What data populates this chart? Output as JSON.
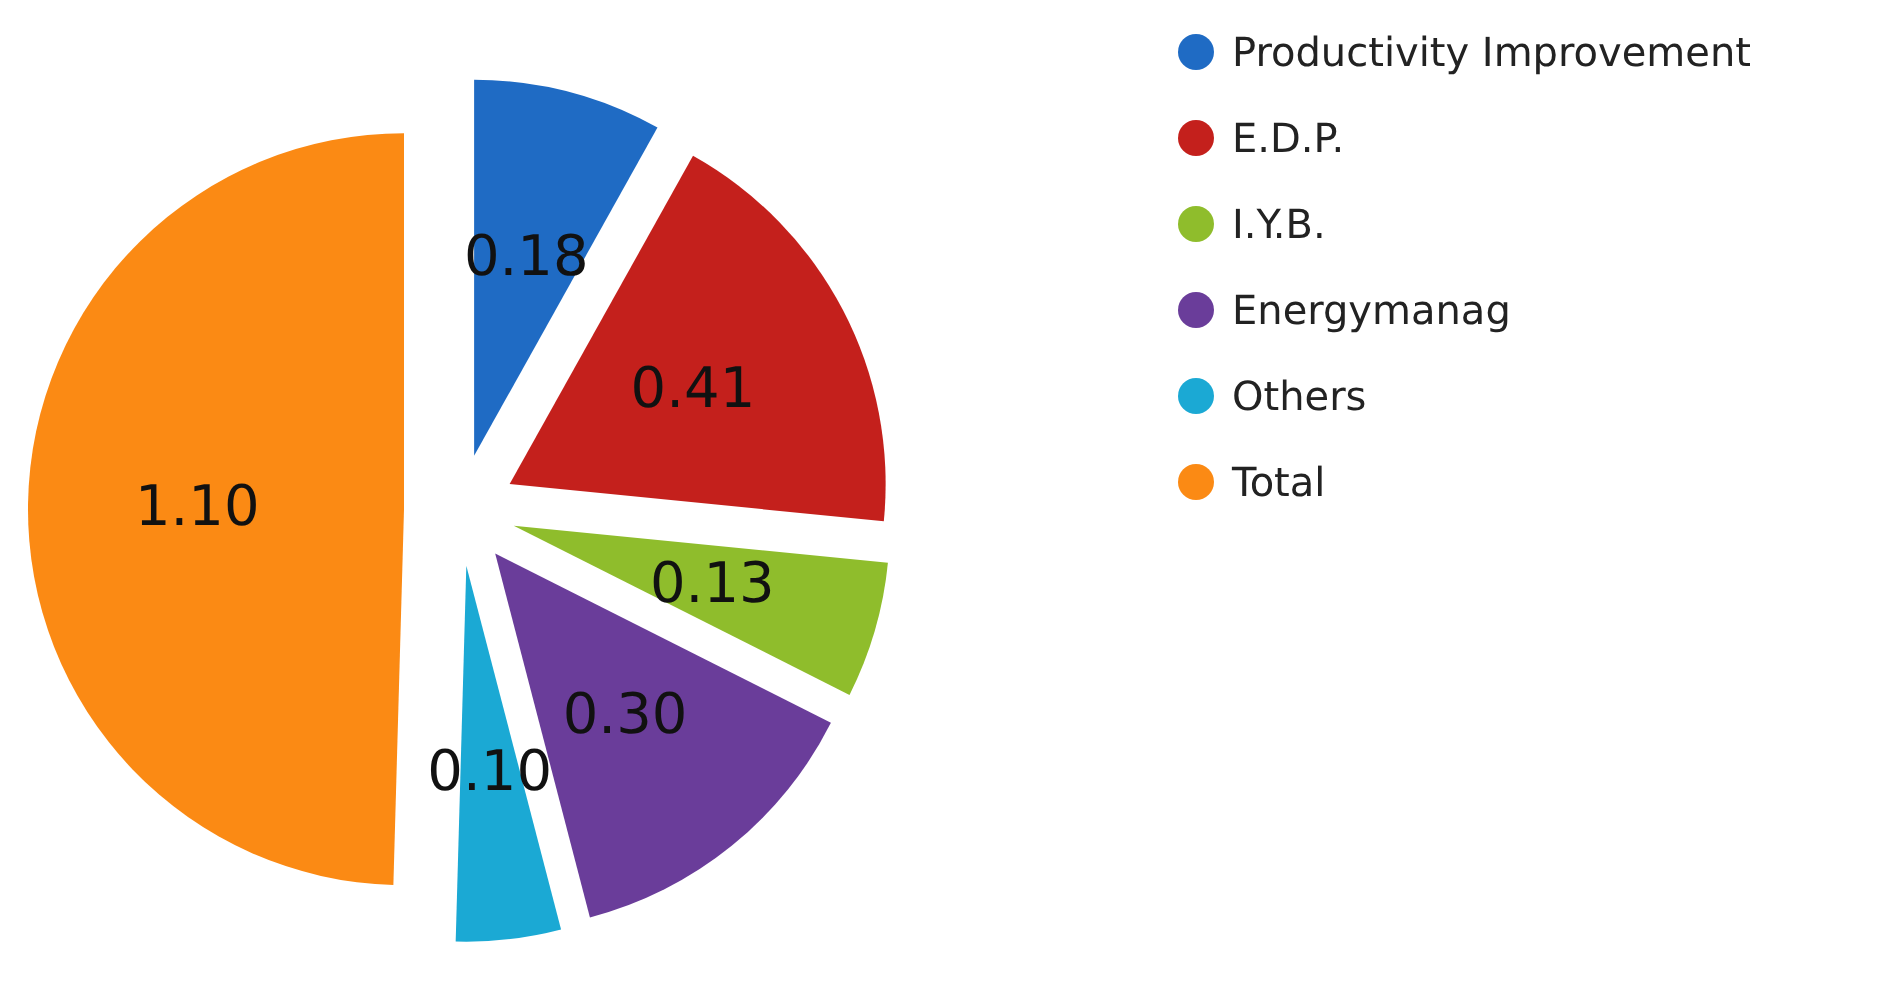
{
  "chart_data": {
    "type": "pie",
    "categories": [
      "Productivity Improvement",
      "E.D.P.",
      "I.Y.B.",
      "Energymanag",
      "Others",
      "Total"
    ],
    "values": [
      0.18,
      0.41,
      0.13,
      0.3,
      0.1,
      1.1
    ],
    "value_labels": [
      "0.18",
      "0.41",
      "0.13",
      "0.30",
      "0.10",
      "1.10"
    ],
    "colors": [
      "#1f6bc4",
      "#c4201c",
      "#8fbd2c",
      "#6a3d9a",
      "#1ba9d4",
      "#fb8a14"
    ],
    "legend": "right"
  }
}
